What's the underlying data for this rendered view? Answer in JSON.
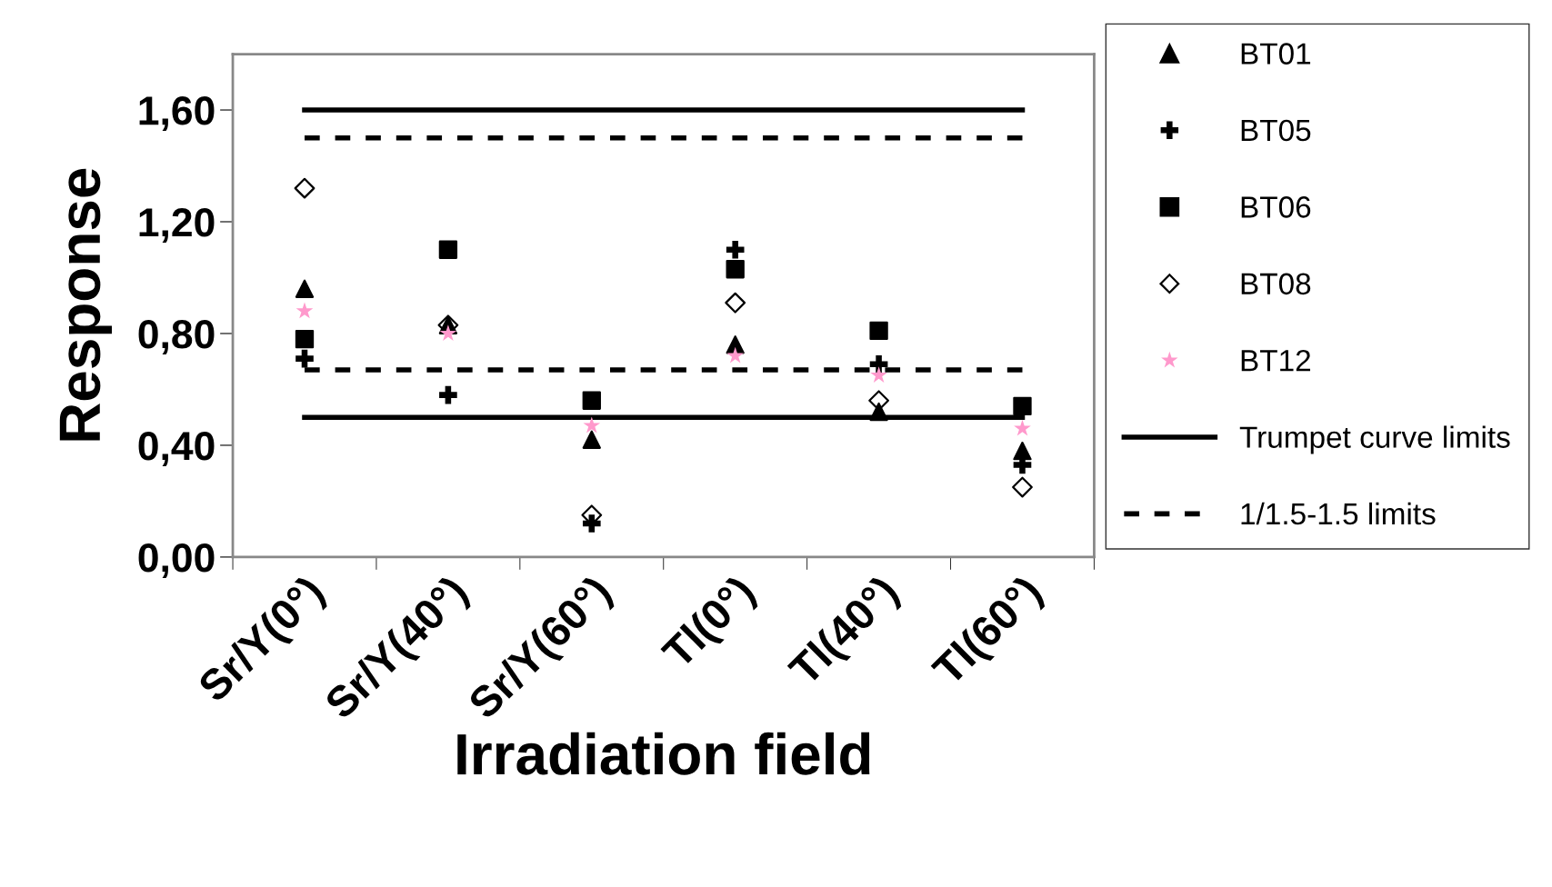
{
  "chart_data": {
    "type": "scatter",
    "xlabel": "Irradiation field",
    "ylabel": "Response",
    "categories": [
      "Sr/Y(0°)",
      "Sr/Y(40°)",
      "Sr/Y(60°)",
      "Tl(0°)",
      "Tl(40°)",
      "Tl(60°)"
    ],
    "ylim": [
      0,
      1.8
    ],
    "yticks": [
      {
        "value": 0,
        "label": "0,00"
      },
      {
        "value": 0.4,
        "label": "0,40"
      },
      {
        "value": 0.8,
        "label": "0,80"
      },
      {
        "value": 1.2,
        "label": "1,20"
      },
      {
        "value": 1.6,
        "label": "1,60"
      }
    ],
    "grid": false,
    "legend": "right",
    "series": [
      {
        "name": "BT01",
        "color": "#000000",
        "marker": "triangle",
        "values": [
          0.96,
          0.83,
          0.42,
          0.76,
          0.52,
          0.38
        ]
      },
      {
        "name": "BT05",
        "color": "#000000",
        "marker": "cross",
        "values": [
          0.71,
          0.58,
          0.12,
          1.1,
          0.69,
          0.33
        ]
      },
      {
        "name": "BT06",
        "color": "#000000",
        "marker": "square",
        "values": [
          0.78,
          1.1,
          0.56,
          1.03,
          0.81,
          0.54
        ]
      },
      {
        "name": "BT08",
        "color": "#000000",
        "marker": "diamond",
        "values": [
          1.32,
          0.83,
          0.15,
          0.91,
          0.56,
          0.25
        ]
      },
      {
        "name": "BT12",
        "color": "#ff99cc",
        "marker": "star",
        "values": [
          0.88,
          0.8,
          0.47,
          0.72,
          0.65,
          0.46
        ]
      },
      {
        "name": "Trumpet curve limits",
        "type": "line",
        "color": "#000000",
        "marker": "none",
        "line_style": "solid",
        "values": [
          1.6,
          1.6,
          1.6,
          1.6,
          1.6,
          1.6
        ]
      },
      {
        "type": "line",
        "color": "#000000",
        "marker": "none",
        "line_style": "solid",
        "values": [
          0.5,
          0.5,
          0.5,
          0.5,
          0.5,
          0.5
        ]
      },
      {
        "name": "1/1.5-1.5 limits",
        "type": "line",
        "color": "#000000",
        "marker": "none",
        "line_style": "dashed",
        "values": [
          1.5,
          1.5,
          1.5,
          1.5,
          1.5,
          1.5
        ]
      },
      {
        "type": "line",
        "color": "#000000",
        "marker": "none",
        "line_style": "dashed",
        "values": [
          0.67,
          0.67,
          0.67,
          0.67,
          0.67,
          0.67
        ]
      }
    ]
  }
}
